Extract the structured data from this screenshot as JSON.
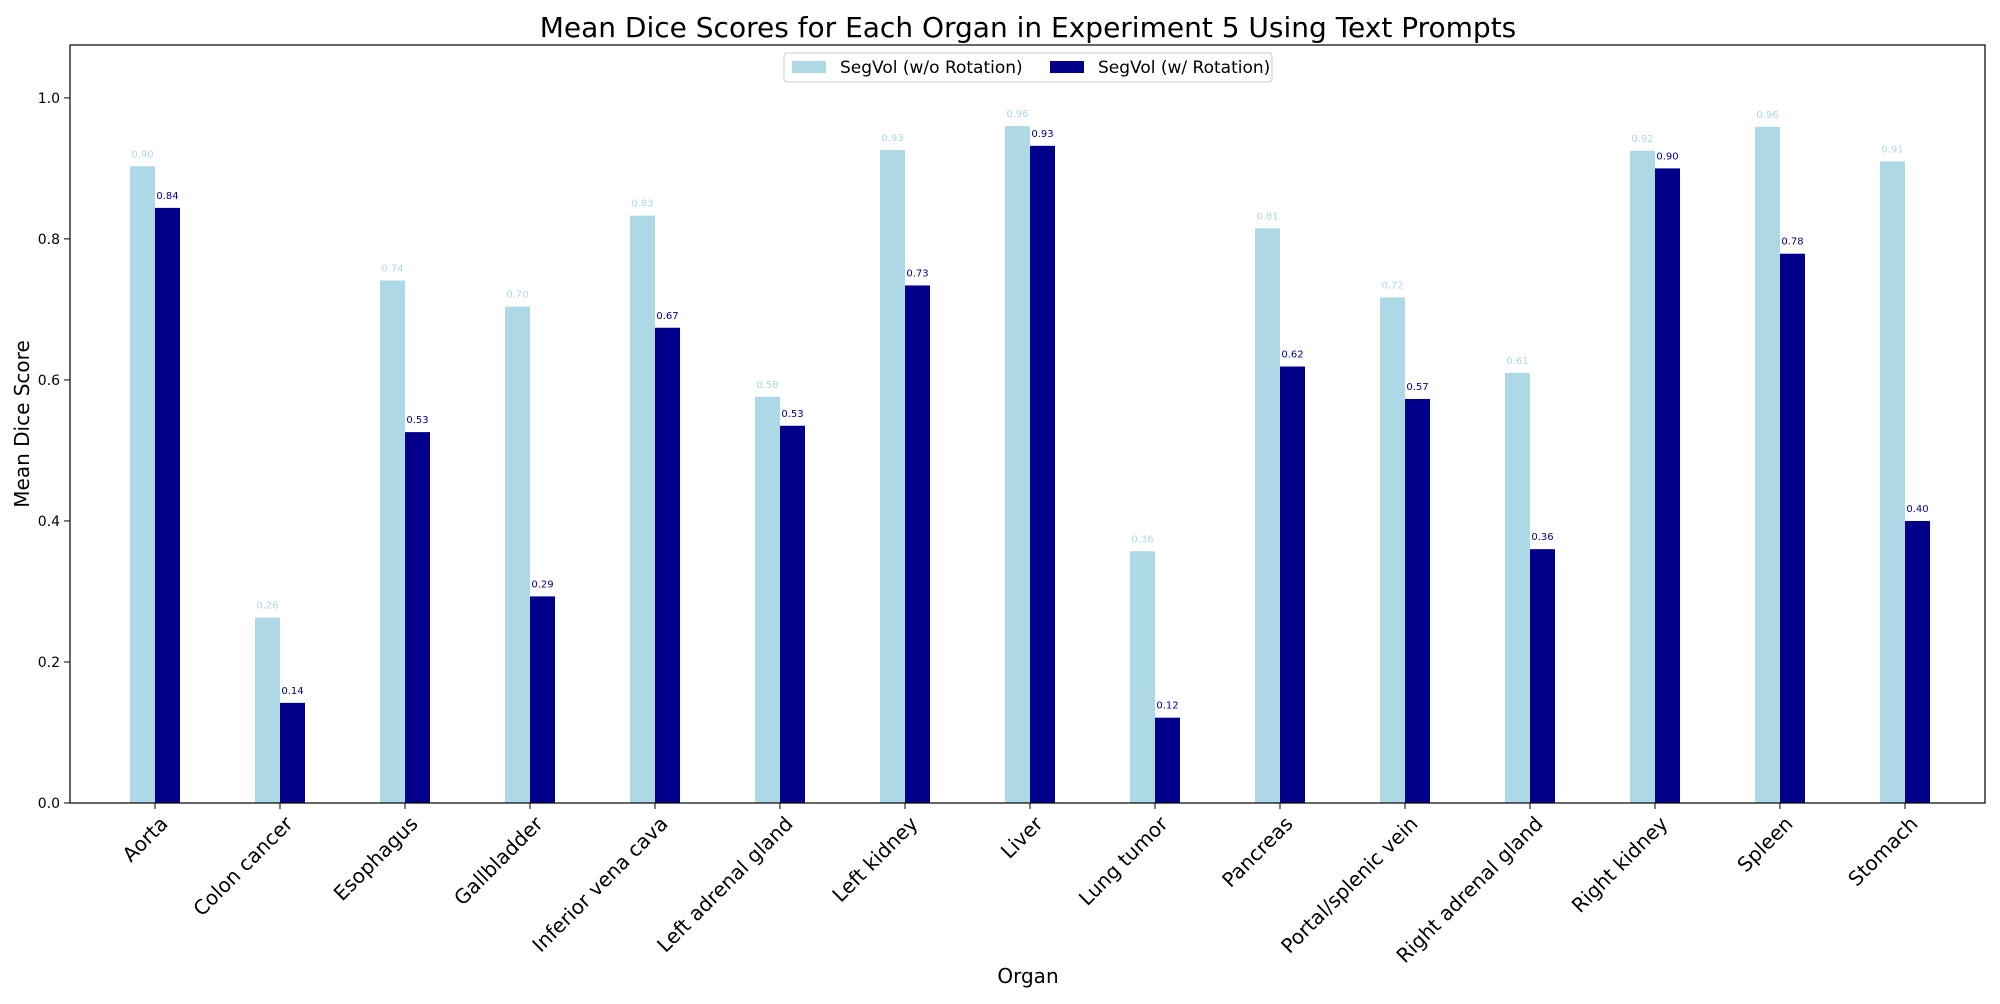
{
  "chart_data": {
    "type": "bar",
    "title": "Mean Dice Scores for Each Organ in Experiment 5 Using Text Prompts",
    "xlabel": "Organ",
    "ylabel": "Mean Dice Score",
    "ylim": [
      0,
      1.075
    ],
    "yticks": [
      "0.0",
      "0.2",
      "0.4",
      "0.6",
      "0.8",
      "1.0"
    ],
    "grid": false,
    "legend_position": "top-center",
    "categories": [
      "Aorta",
      "Colon cancer",
      "Esophagus",
      "Gallbladder",
      "Inferior vena cava",
      "Left adrenal gland",
      "Left kidney",
      "Liver",
      "Lung tumor",
      "Pancreas",
      "Portal/splenic vein",
      "Right adrenal gland",
      "Right kidney",
      "Spleen",
      "Stomach"
    ],
    "series": [
      {
        "name": "SegVol (w/o Rotation)",
        "color": "#add8e6",
        "values": [
          0.903,
          0.263,
          0.741,
          0.704,
          0.833,
          0.576,
          0.926,
          0.96,
          0.357,
          0.815,
          0.717,
          0.61,
          0.925,
          0.959,
          0.91
        ],
        "labels": [
          "0.90",
          "0.26",
          "0.74",
          "0.70",
          "0.83",
          "0.58",
          "0.93",
          "0.96",
          "0.36",
          "0.81",
          "0.72",
          "0.61",
          "0.92",
          "0.96",
          "0.91"
        ]
      },
      {
        "name": "SegVol (w/ Rotation)",
        "color": "#00008b",
        "values": [
          0.844,
          0.142,
          0.526,
          0.293,
          0.674,
          0.535,
          0.734,
          0.932,
          0.121,
          0.619,
          0.573,
          0.36,
          0.9,
          0.779,
          0.4
        ],
        "labels": [
          "0.84",
          "0.14",
          "0.53",
          "0.29",
          "0.67",
          "0.53",
          "0.73",
          "0.93",
          "0.12",
          "0.62",
          "0.57",
          "0.36",
          "0.90",
          "0.78",
          "0.40"
        ]
      }
    ]
  }
}
